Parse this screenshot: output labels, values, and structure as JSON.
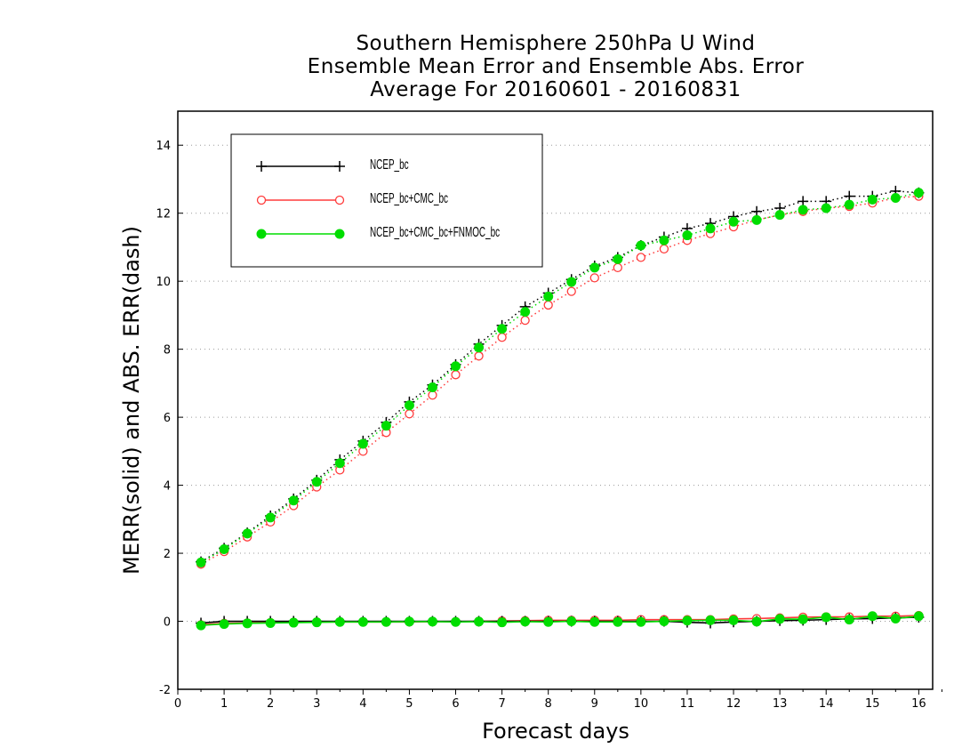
{
  "title": {
    "line1": "Southern Hemisphere 250hPa U Wind",
    "line2": "Ensemble Mean Error and Ensemble Abs. Error",
    "line3": "Average For 20160601 - 20160831"
  },
  "chart_data": {
    "type": "line",
    "xlabel": "Forecast days",
    "ylabel": "MERR(solid) and ABS. ERR(dash)",
    "xlim": [
      0,
      16.3
    ],
    "ylim": [
      -2,
      15
    ],
    "xticks": [
      0,
      1,
      2,
      3,
      4,
      5,
      6,
      7,
      8,
      9,
      10,
      11,
      12,
      13,
      14,
      15,
      16
    ],
    "yticks": [
      -2,
      0,
      2,
      4,
      6,
      8,
      10,
      12,
      14
    ],
    "grid": "horizontal dotted",
    "legend_placement": "top-left",
    "x": [
      0.5,
      1,
      1.5,
      2,
      2.5,
      3,
      3.5,
      4,
      4.5,
      5,
      5.5,
      6,
      6.5,
      7,
      7.5,
      8,
      8.5,
      9,
      9.5,
      10,
      10.5,
      11,
      11.5,
      12,
      12.5,
      13,
      13.5,
      14,
      14.5,
      15,
      15.5,
      16
    ],
    "series": [
      {
        "name": "NCEP_bc",
        "color": "#000000",
        "marker": "plus",
        "abs_err": [
          1.75,
          2.15,
          2.6,
          3.1,
          3.6,
          4.15,
          4.75,
          5.3,
          5.85,
          6.45,
          6.95,
          7.55,
          8.15,
          8.7,
          9.25,
          9.65,
          10.05,
          10.45,
          10.7,
          11.05,
          11.3,
          11.55,
          11.7,
          11.9,
          12.05,
          12.15,
          12.35,
          12.35,
          12.5,
          12.5,
          12.65,
          12.6
        ],
        "mean_err": [
          -0.05,
          0,
          0,
          0,
          0,
          0,
          0,
          0,
          0,
          0,
          0,
          0,
          0,
          0,
          0,
          0,
          0,
          0,
          0,
          0,
          0,
          -0.03,
          -0.05,
          -0.02,
          0,
          0.02,
          0.03,
          0.05,
          0.07,
          0.08,
          0.1,
          0.12
        ]
      },
      {
        "name": "NCEP_bc+CMC_bc",
        "color": "#ff3b3b",
        "marker": "open-circle",
        "abs_err": [
          1.68,
          2.05,
          2.48,
          2.92,
          3.4,
          3.95,
          4.45,
          5.0,
          5.55,
          6.1,
          6.65,
          7.25,
          7.8,
          8.35,
          8.85,
          9.3,
          9.7,
          10.1,
          10.4,
          10.7,
          10.95,
          11.2,
          11.4,
          11.6,
          11.8,
          11.95,
          12.05,
          12.15,
          12.2,
          12.3,
          12.45,
          12.5
        ],
        "mean_err": [
          -0.1,
          -0.06,
          -0.05,
          -0.04,
          -0.03,
          -0.02,
          -0.02,
          -0.02,
          -0.02,
          -0.02,
          -0.01,
          -0.01,
          0,
          0.01,
          0.02,
          0.03,
          0.03,
          0.03,
          0.03,
          0.05,
          0.05,
          0.05,
          0.05,
          0.07,
          0.08,
          0.1,
          0.12,
          0.13,
          0.13,
          0.15,
          0.15,
          0.17
        ]
      },
      {
        "name": "NCEP_bc+CMC_bc+FNMOC_bc",
        "color": "#00dd00",
        "marker": "filled-circle",
        "abs_err": [
          1.73,
          2.12,
          2.58,
          3.05,
          3.55,
          4.1,
          4.65,
          5.22,
          5.75,
          6.35,
          6.88,
          7.5,
          8.05,
          8.6,
          9.1,
          9.55,
          9.98,
          10.4,
          10.65,
          11.05,
          11.2,
          11.35,
          11.55,
          11.75,
          11.8,
          11.95,
          12.1,
          12.15,
          12.25,
          12.4,
          12.45,
          12.6
        ],
        "mean_err": [
          -0.12,
          -0.08,
          -0.06,
          -0.05,
          -0.04,
          -0.03,
          -0.02,
          -0.02,
          -0.02,
          -0.01,
          -0.01,
          -0.02,
          -0.01,
          -0.03,
          -0.01,
          -0.02,
          0,
          -0.02,
          -0.02,
          -0.02,
          0,
          0.02,
          0.03,
          0.03,
          -0.01,
          0.07,
          0.06,
          0.12,
          0.05,
          0.15,
          0.08,
          0.15
        ]
      }
    ]
  }
}
